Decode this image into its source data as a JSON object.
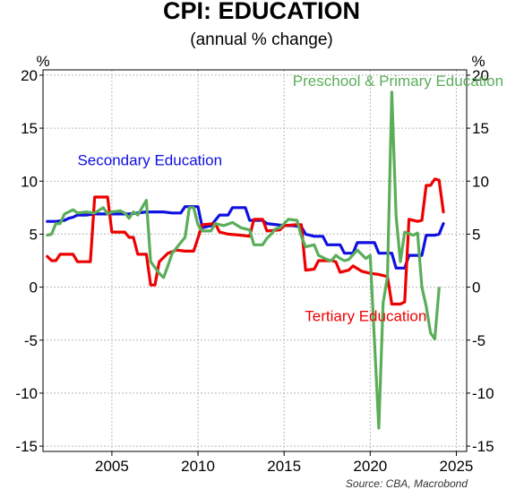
{
  "chart_data": {
    "type": "line",
    "title": "CPI: EDUCATION",
    "subtitle": "(annual % change)",
    "ylabel_left": "%",
    "ylabel_right": "%",
    "source": "Source: CBA, Macrobond",
    "xlim": [
      2001.0,
      2025.6
    ],
    "ylim": [
      -15.5,
      20.5
    ],
    "x_ticks": [
      2005,
      2010,
      2015,
      2020,
      2025
    ],
    "y_ticks": [
      20,
      15,
      10,
      5,
      0,
      -5,
      -10,
      -15
    ],
    "grid": true,
    "series": [
      {
        "name": "Secondary Education",
        "color": "#1010e0",
        "points": [
          [
            2001.25,
            6.2
          ],
          [
            2001.75,
            6.2
          ],
          [
            2002.25,
            6.3
          ],
          [
            2002.5,
            6.5
          ],
          [
            2002.75,
            6.6
          ],
          [
            2003.0,
            6.8
          ],
          [
            2003.5,
            6.8
          ],
          [
            2004.0,
            6.9
          ],
          [
            2005.0,
            6.9
          ],
          [
            2006.0,
            6.9
          ],
          [
            2007.0,
            7.1
          ],
          [
            2008.0,
            7.1
          ],
          [
            2008.5,
            7.0
          ],
          [
            2009.0,
            7.0
          ],
          [
            2009.25,
            7.6
          ],
          [
            2010.0,
            7.6
          ],
          [
            2010.25,
            5.6
          ],
          [
            2010.75,
            5.8
          ],
          [
            2011.0,
            6.3
          ],
          [
            2011.25,
            6.8
          ],
          [
            2011.75,
            6.8
          ],
          [
            2012.0,
            7.5
          ],
          [
            2012.75,
            7.5
          ],
          [
            2013.0,
            6.3
          ],
          [
            2013.75,
            6.3
          ],
          [
            2014.0,
            6.0
          ],
          [
            2015.0,
            5.8
          ],
          [
            2015.5,
            5.8
          ],
          [
            2016.0,
            5.7
          ],
          [
            2016.25,
            5.0
          ],
          [
            2016.75,
            4.8
          ],
          [
            2017.25,
            4.8
          ],
          [
            2017.5,
            4.0
          ],
          [
            2018.25,
            4.0
          ],
          [
            2018.5,
            3.2
          ],
          [
            2019.0,
            3.2
          ],
          [
            2019.25,
            4.2
          ],
          [
            2020.25,
            4.2
          ],
          [
            2020.5,
            3.2
          ],
          [
            2021.25,
            3.2
          ],
          [
            2021.5,
            1.8
          ],
          [
            2022.0,
            1.8
          ],
          [
            2022.25,
            3.0
          ],
          [
            2023.0,
            3.0
          ],
          [
            2023.25,
            4.9
          ],
          [
            2023.75,
            4.9
          ],
          [
            2024.0,
            5.0
          ],
          [
            2024.25,
            6.0
          ]
        ]
      },
      {
        "name": "Tertiary Education",
        "color": "#ee0000",
        "points": [
          [
            2001.25,
            2.9
          ],
          [
            2001.5,
            2.5
          ],
          [
            2001.75,
            2.5
          ],
          [
            2002.0,
            3.1
          ],
          [
            2002.75,
            3.1
          ],
          [
            2003.0,
            2.4
          ],
          [
            2003.75,
            2.4
          ],
          [
            2004.0,
            8.5
          ],
          [
            2004.75,
            8.5
          ],
          [
            2005.0,
            5.2
          ],
          [
            2005.75,
            5.2
          ],
          [
            2006.0,
            4.7
          ],
          [
            2006.25,
            4.7
          ],
          [
            2006.5,
            3.1
          ],
          [
            2007.0,
            3.1
          ],
          [
            2007.25,
            0.2
          ],
          [
            2007.5,
            0.2
          ],
          [
            2007.75,
            2.4
          ],
          [
            2008.25,
            3.2
          ],
          [
            2008.75,
            3.5
          ],
          [
            2009.25,
            3.4
          ],
          [
            2009.75,
            3.4
          ],
          [
            2010.25,
            5.9
          ],
          [
            2011.0,
            6.0
          ],
          [
            2011.25,
            5.2
          ],
          [
            2011.75,
            5.0
          ],
          [
            2012.5,
            4.9
          ],
          [
            2013.0,
            4.8
          ],
          [
            2013.25,
            6.4
          ],
          [
            2013.75,
            6.4
          ],
          [
            2014.0,
            5.3
          ],
          [
            2014.75,
            5.4
          ],
          [
            2015.0,
            5.8
          ],
          [
            2015.75,
            5.9
          ],
          [
            2016.0,
            5.9
          ],
          [
            2016.25,
            1.6
          ],
          [
            2016.75,
            1.7
          ],
          [
            2017.0,
            2.5
          ],
          [
            2017.75,
            2.5
          ],
          [
            2018.0,
            2.4
          ],
          [
            2018.25,
            1.4
          ],
          [
            2018.75,
            1.6
          ],
          [
            2019.0,
            2.0
          ],
          [
            2019.5,
            1.5
          ],
          [
            2020.0,
            1.3
          ],
          [
            2020.5,
            1.2
          ],
          [
            2021.0,
            1.0
          ],
          [
            2021.25,
            -1.6
          ],
          [
            2021.75,
            -1.6
          ],
          [
            2022.0,
            -1.4
          ],
          [
            2022.25,
            6.4
          ],
          [
            2022.75,
            6.2
          ],
          [
            2023.0,
            6.3
          ],
          [
            2023.25,
            9.6
          ],
          [
            2023.5,
            9.6
          ],
          [
            2023.75,
            10.2
          ],
          [
            2024.0,
            10.1
          ],
          [
            2024.25,
            7.1
          ]
        ]
      },
      {
        "name": "Preschool & Primary Education",
        "color": "#5aae5a",
        "points": [
          [
            2001.25,
            4.9
          ],
          [
            2001.5,
            5.0
          ],
          [
            2001.75,
            6.0
          ],
          [
            2002.0,
            6.0
          ],
          [
            2002.25,
            6.9
          ],
          [
            2002.75,
            7.3
          ],
          [
            2003.0,
            7.0
          ],
          [
            2003.5,
            7.1
          ],
          [
            2004.0,
            7.0
          ],
          [
            2004.5,
            7.5
          ],
          [
            2004.75,
            6.9
          ],
          [
            2005.0,
            7.1
          ],
          [
            2005.5,
            7.2
          ],
          [
            2005.75,
            7.0
          ],
          [
            2006.0,
            6.5
          ],
          [
            2006.25,
            7.1
          ],
          [
            2006.5,
            6.8
          ],
          [
            2007.0,
            8.2
          ],
          [
            2007.25,
            2.4
          ],
          [
            2007.75,
            1.3
          ],
          [
            2008.0,
            0.9
          ],
          [
            2008.25,
            2.0
          ],
          [
            2008.5,
            3.2
          ],
          [
            2009.0,
            4.2
          ],
          [
            2009.25,
            4.7
          ],
          [
            2009.5,
            7.5
          ],
          [
            2009.75,
            7.5
          ],
          [
            2010.0,
            5.9
          ],
          [
            2010.25,
            5.3
          ],
          [
            2010.75,
            5.3
          ],
          [
            2011.0,
            6.0
          ],
          [
            2011.5,
            5.8
          ],
          [
            2012.0,
            6.1
          ],
          [
            2012.5,
            5.6
          ],
          [
            2013.0,
            5.4
          ],
          [
            2013.25,
            4.0
          ],
          [
            2013.75,
            4.0
          ],
          [
            2014.0,
            4.6
          ],
          [
            2014.25,
            5.0
          ],
          [
            2014.5,
            5.5
          ],
          [
            2014.75,
            5.6
          ],
          [
            2015.0,
            6.0
          ],
          [
            2015.25,
            6.4
          ],
          [
            2015.75,
            6.3
          ],
          [
            2016.0,
            4.8
          ],
          [
            2016.25,
            3.8
          ],
          [
            2016.75,
            4.0
          ],
          [
            2017.0,
            3.0
          ],
          [
            2017.5,
            2.6
          ],
          [
            2017.75,
            2.5
          ],
          [
            2018.0,
            3.0
          ],
          [
            2018.25,
            2.7
          ],
          [
            2018.5,
            2.5
          ],
          [
            2018.75,
            2.6
          ],
          [
            2019.25,
            3.5
          ],
          [
            2019.75,
            2.7
          ],
          [
            2020.0,
            3.0
          ],
          [
            2020.5,
            -13.3
          ],
          [
            2020.75,
            -1.5
          ],
          [
            2021.0,
            1.0
          ],
          [
            2021.25,
            18.4
          ],
          [
            2021.5,
            6.7
          ],
          [
            2021.75,
            2.4
          ],
          [
            2022.0,
            5.2
          ],
          [
            2022.5,
            4.9
          ],
          [
            2022.75,
            5.1
          ],
          [
            2023.0,
            0.0
          ],
          [
            2023.25,
            -1.8
          ],
          [
            2023.5,
            -4.3
          ],
          [
            2023.75,
            -4.9
          ],
          [
            2024.0,
            -0.1
          ]
        ]
      }
    ],
    "annotations": [
      {
        "text": "Secondary Education",
        "x": 2003.0,
        "y": 11.5,
        "color": "#1010e0"
      },
      {
        "text": "Preschool & Primary Education",
        "x": 2015.5,
        "y": 19.0,
        "color": "#5aae5a"
      },
      {
        "text": "Tertiary Education",
        "x": 2016.2,
        "y": -3.2,
        "color": "#ee0000"
      }
    ]
  }
}
